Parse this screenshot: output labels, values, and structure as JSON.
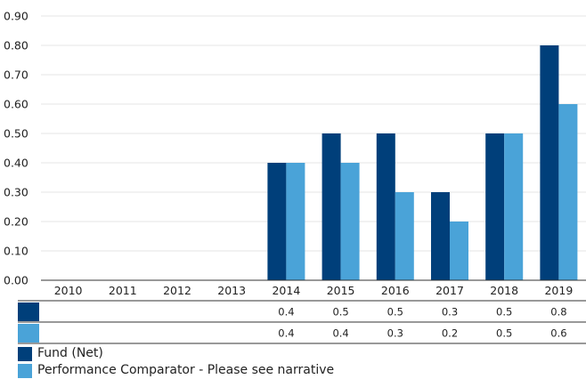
{
  "chart_data": {
    "type": "bar",
    "categories": [
      "2010",
      "2011",
      "2012",
      "2013",
      "2014",
      "2015",
      "2016",
      "2017",
      "2018",
      "2019"
    ],
    "series": [
      {
        "name": "Fund (Net)",
        "color": "#003f7a",
        "values": [
          null,
          null,
          null,
          null,
          0.4,
          0.5,
          0.5,
          0.3,
          0.5,
          0.8
        ]
      },
      {
        "name": "Performance Comparator - Please see narrative",
        "color": "#4aa3d8",
        "values": [
          null,
          null,
          null,
          null,
          0.4,
          0.4,
          0.3,
          0.2,
          0.5,
          0.6
        ]
      }
    ],
    "y_ticks": [
      "0.00",
      "0.10",
      "0.20",
      "0.30",
      "0.40",
      "0.50",
      "0.60",
      "0.70",
      "0.80",
      "0.90"
    ],
    "ylim": [
      0,
      0.9
    ],
    "grid": true,
    "data_table": {
      "rows": [
        [
          "",
          "",
          "",
          "",
          "0.4",
          "0.5",
          "0.5",
          "0.3",
          "0.5",
          "0.8"
        ],
        [
          "",
          "",
          "",
          "",
          "0.4",
          "0.4",
          "0.3",
          "0.2",
          "0.5",
          "0.6"
        ]
      ]
    },
    "legend_position": "bottom-left"
  }
}
